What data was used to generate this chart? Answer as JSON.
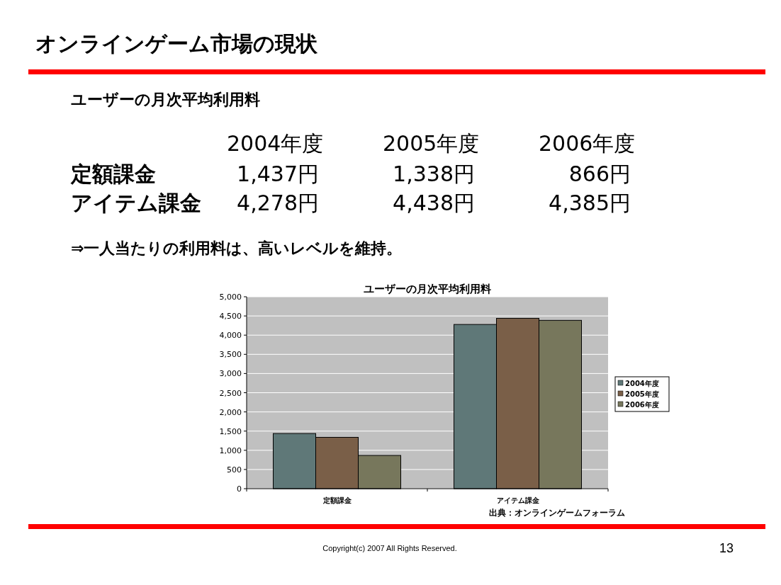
{
  "chart_data": {
    "type": "bar",
    "title": "オンラインゲーム市場の現状",
    "subtitle": "ユーザーの月次平均利用料",
    "categories": [
      "定額課金",
      "アイテム課金"
    ],
    "series": [
      {
        "name": "2004年度",
        "color": "#5f7878",
        "values": [
          1437,
          4278
        ]
      },
      {
        "name": "2005年度",
        "color": "#7a5f48",
        "values": [
          1338,
          4438
        ]
      },
      {
        "name": "2006年度",
        "color": "#77775c",
        "values": [
          866,
          4385
        ]
      }
    ],
    "ylim": [
      0,
      5000
    ],
    "yticks": [
      0,
      {
        "value": 500,
        "label": "500"
      },
      {
        "value": 1000,
        "label": "1,000"
      },
      {
        "value": 1500,
        "label": "1,500"
      },
      {
        "value": 2000,
        "label": "2,000"
      },
      {
        "value": 2500,
        "label": "2,500"
      },
      {
        "value": 3000,
        "label": "3,000"
      },
      {
        "value": 3500,
        "label": "3,500"
      },
      {
        "value": 4000,
        "label": "4,000"
      },
      {
        "value": 4500,
        "label": "4,500"
      },
      {
        "value": 5000,
        "label": "5,000"
      }
    ],
    "grid": "y",
    "legend": "right",
    "annotations": [
      "ユーザーの月次平均利用料",
      "2004年度",
      "2005年度",
      "2006年度",
      "定額課金",
      "1,437円",
      "1,338円",
      "866円",
      "アイテム課金",
      "4,278円",
      "4,438円",
      "4,385円",
      "⇒一人当たりの利用料は、高いレベルを維持。",
      "出典：オンラインゲームフォーラム",
      "Copyright(c) 2007 All Rights Reserved.",
      "13"
    ]
  }
}
